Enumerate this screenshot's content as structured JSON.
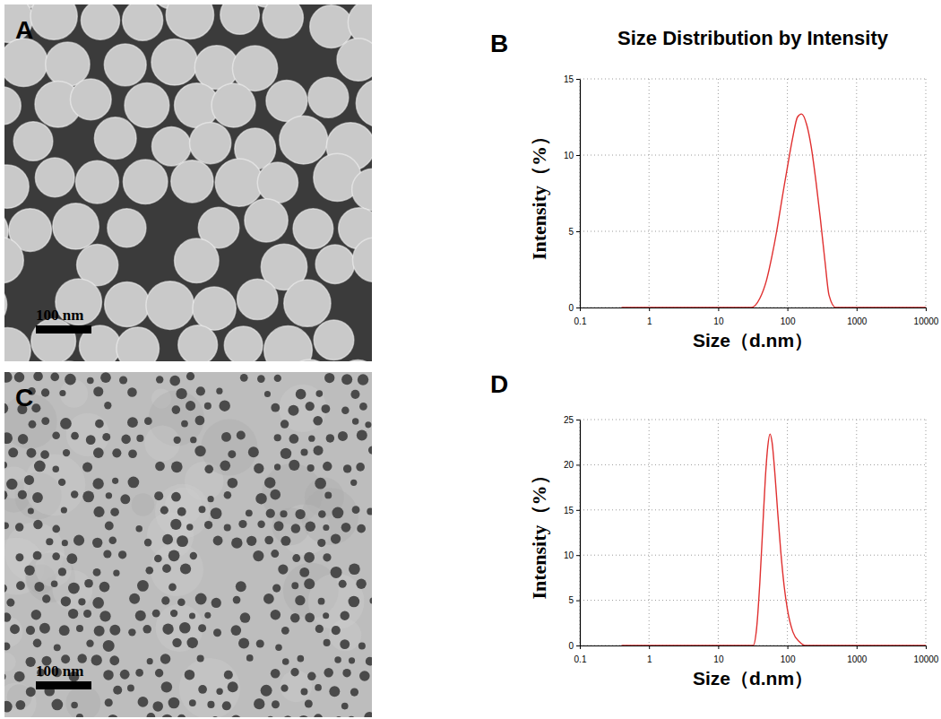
{
  "chart_data": [
    {
      "type": "line",
      "annotations": [
        "B"
      ],
      "title": "Size Distribution by Intensity",
      "x_label": "Size（d.nm）",
      "y_label": "Intensity（%）",
      "log": "x",
      "x": [
        0.4,
        20,
        30,
        40,
        50,
        60,
        70,
        80,
        90,
        100,
        120,
        140,
        160,
        190,
        220,
        260,
        300,
        350,
        400,
        500,
        10000
      ],
      "values": [
        0,
        0,
        0,
        0.6,
        1.8,
        3.4,
        5,
        6.6,
        8,
        9.2,
        11.2,
        12.5,
        12.7,
        12,
        10.6,
        8.2,
        5.8,
        3,
        0.8,
        0,
        0
      ],
      "color": "#e03030",
      "xlim": [
        0.1,
        10000
      ],
      "ylim": [
        0,
        15
      ],
      "xticks": [
        0.1,
        1,
        10,
        100,
        1000,
        10000
      ],
      "yticks": [
        0,
        5,
        10,
        15
      ],
      "grid": true
    },
    {
      "type": "line",
      "annotations": [
        "D"
      ],
      "x_label": "Size（d.nm）",
      "y_label": "Intensity（%）",
      "log": "x",
      "x": [
        0.4,
        20,
        32,
        36,
        40,
        44,
        48,
        52,
        56,
        60,
        66,
        72,
        80,
        90,
        100,
        120,
        150,
        180,
        10000
      ],
      "values": [
        0,
        0,
        0,
        2,
        7,
        13,
        18.5,
        22,
        23.4,
        22.5,
        19,
        15,
        10.5,
        6.5,
        4,
        1.5,
        0.4,
        0,
        0
      ],
      "color": "#e03030",
      "xlim": [
        0.1,
        10000
      ],
      "ylim": [
        0,
        25
      ],
      "xticks": [
        0.1,
        1,
        10,
        100,
        1000,
        10000
      ],
      "yticks": [
        0,
        5,
        10,
        15,
        20,
        25
      ],
      "grid": true
    }
  ],
  "images": [
    {
      "label": "A",
      "scale_bar": "100 nm"
    },
    {
      "label": "C",
      "scale_bar": "100 nm"
    }
  ]
}
